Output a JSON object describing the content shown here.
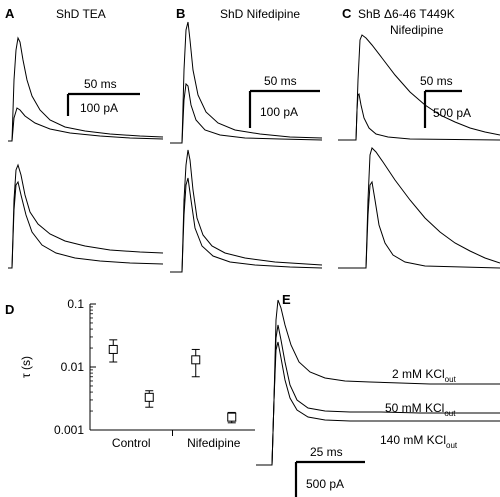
{
  "panels": {
    "A": {
      "letter": "A",
      "title": "ShD TEA",
      "time_scale": "50 ms",
      "current_scale": "100 pA"
    },
    "B": {
      "letter": "B",
      "title": "ShD Nifedipine",
      "time_scale": "50 ms",
      "current_scale": "100 pA"
    },
    "C": {
      "letter": "C",
      "title_line1": "ShB Δ6-46 T449K",
      "title_line2": "Nifedipine",
      "time_scale": "50 ms",
      "current_scale": "500 pA"
    },
    "D": {
      "letter": "D"
    },
    "E": {
      "letter": "E",
      "time_scale": "25 ms",
      "current_scale": "500 pA",
      "conditions": [
        {
          "main": "2 mM KCl",
          "sub": "out"
        },
        {
          "main": "50 mM KCl",
          "sub": "out"
        },
        {
          "main": "140 mM KCl",
          "sub": "out"
        }
      ]
    }
  },
  "chart_data": {
    "type": "scatter",
    "ylabel": "τ (s)",
    "yscale": "log",
    "ylim": [
      0.001,
      0.1
    ],
    "yticks": [
      "0.1",
      "0.01",
      "0.001"
    ],
    "categories": [
      "Control",
      "Nifedipine"
    ],
    "points": [
      {
        "group": "Control",
        "offset": -1,
        "y": 0.019,
        "err_low": 0.012,
        "err_high": 0.027
      },
      {
        "group": "Control",
        "offset": 1,
        "y": 0.0033,
        "err_low": 0.0023,
        "err_high": 0.0042
      },
      {
        "group": "Nifedipine",
        "offset": -1,
        "y": 0.013,
        "err_low": 0.007,
        "err_high": 0.019
      },
      {
        "group": "Nifedipine",
        "offset": 1,
        "y": 0.0016,
        "err_low": 0.0013,
        "err_high": 0.0019
      }
    ]
  }
}
